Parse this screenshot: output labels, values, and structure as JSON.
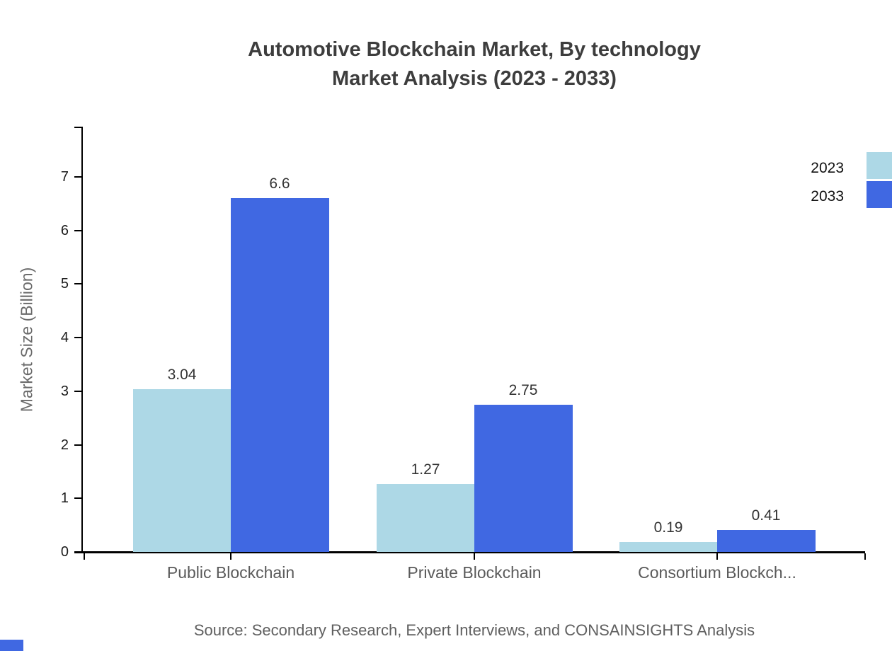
{
  "title": {
    "line1": "Automotive Blockchain Market, By technology",
    "line2": "Market Analysis (2023 - 2033)"
  },
  "source": "Source: Secondary Research, Expert Interviews, and CONSAINSIGHTS Analysis",
  "colors": {
    "series_2023": "#ADD8E6",
    "series_2033": "#4068E2",
    "axis": "#000000",
    "title_text": "#3d3d3d",
    "muted_text": "#5a5a5a"
  },
  "chart_data": {
    "type": "bar",
    "categories": [
      "Public Blockchain",
      "Private Blockchain",
      "Consortium Blockch..."
    ],
    "series": [
      {
        "name": "2023",
        "color": "#ADD8E6",
        "values": [
          3.04,
          1.27,
          0.19
        ]
      },
      {
        "name": "2033",
        "color": "#4068E2",
        "values": [
          6.6,
          2.75,
          0.41
        ]
      }
    ],
    "value_labels": {
      "2023": [
        "3.04",
        "1.27",
        "0.19"
      ],
      "2033": [
        "6.6",
        "2.75",
        "0.41"
      ]
    },
    "title": "Automotive Blockchain Market, By technology Market Analysis (2023 - 2033)",
    "xlabel": "",
    "ylabel": "Market Size (Billion)",
    "ylim": [
      0,
      7.9
    ],
    "yticks": [
      0,
      1,
      2,
      3,
      4,
      5,
      6,
      7
    ],
    "grid": false,
    "legend_position": "top-right",
    "bar_value_labels_shown": true
  }
}
